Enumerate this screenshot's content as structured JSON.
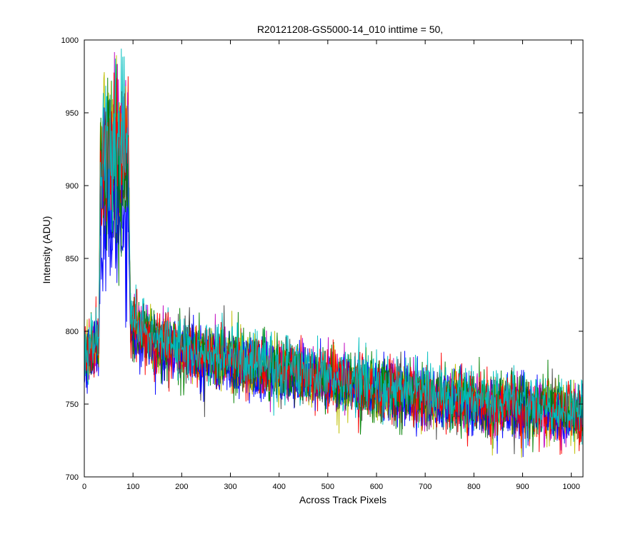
{
  "chart_data": {
    "type": "line",
    "title": "R20121208-GS5000-14_010 inttime = 50,",
    "xlabel": "Across Track Pixels",
    "ylabel": "Intensity (ADU)",
    "xlim": [
      0,
      1024
    ],
    "ylim": [
      700,
      1000
    ],
    "xticks": [
      "0",
      "100",
      "200",
      "300",
      "400",
      "500",
      "600",
      "700",
      "800",
      "900",
      "1000"
    ],
    "yticks": [
      "700",
      "750",
      "800",
      "850",
      "900",
      "950",
      "1000"
    ],
    "grid": false,
    "legend": "none",
    "noise_amplitude": 14,
    "series": [
      {
        "color": "#0000ff",
        "profile": [
          [
            0,
            775
          ],
          [
            30,
            790
          ],
          [
            33,
            870
          ],
          [
            90,
            875
          ],
          [
            95,
            800
          ],
          [
            150,
            790
          ],
          [
            300,
            778
          ],
          [
            500,
            765
          ],
          [
            700,
            755
          ],
          [
            1024,
            742
          ]
        ]
      },
      {
        "color": "#008000",
        "profile": [
          [
            0,
            782
          ],
          [
            30,
            795
          ],
          [
            33,
            905
          ],
          [
            90,
            908
          ],
          [
            95,
            805
          ],
          [
            150,
            792
          ],
          [
            300,
            780
          ],
          [
            500,
            767
          ],
          [
            700,
            756
          ],
          [
            1024,
            743
          ]
        ]
      },
      {
        "color": "#ff0000",
        "profile": [
          [
            0,
            780
          ],
          [
            30,
            793
          ],
          [
            33,
            925
          ],
          [
            90,
            928
          ],
          [
            95,
            803
          ],
          [
            150,
            791
          ],
          [
            300,
            779
          ],
          [
            500,
            766
          ],
          [
            700,
            755
          ],
          [
            1024,
            742
          ]
        ]
      },
      {
        "color": "#00bfbf",
        "profile": [
          [
            0,
            784
          ],
          [
            30,
            796
          ],
          [
            33,
            920
          ],
          [
            90,
            925
          ],
          [
            95,
            806
          ],
          [
            150,
            793
          ],
          [
            300,
            781
          ],
          [
            500,
            768
          ],
          [
            700,
            757
          ],
          [
            1024,
            744
          ]
        ]
      },
      {
        "color": "#bf00bf",
        "profile": [
          [
            0,
            779
          ],
          [
            30,
            792
          ],
          [
            33,
            930
          ],
          [
            90,
            932
          ],
          [
            95,
            802
          ],
          [
            150,
            790
          ],
          [
            300,
            778
          ],
          [
            500,
            765
          ],
          [
            700,
            754
          ],
          [
            1024,
            741
          ]
        ]
      },
      {
        "color": "#bfbf00",
        "profile": [
          [
            0,
            781
          ],
          [
            30,
            794
          ],
          [
            33,
            935
          ],
          [
            90,
            938
          ],
          [
            95,
            804
          ],
          [
            150,
            791
          ],
          [
            300,
            779
          ],
          [
            500,
            766
          ],
          [
            700,
            755
          ],
          [
            1024,
            742
          ]
        ]
      },
      {
        "color": "#404040",
        "profile": [
          [
            0,
            780
          ],
          [
            30,
            793
          ],
          [
            33,
            915
          ],
          [
            90,
            918
          ],
          [
            95,
            803
          ],
          [
            150,
            790
          ],
          [
            300,
            778
          ],
          [
            500,
            765
          ],
          [
            700,
            754
          ],
          [
            1024,
            742
          ]
        ]
      },
      {
        "color": "#0000ff",
        "profile": [
          [
            0,
            778
          ],
          [
            30,
            791
          ],
          [
            33,
            895
          ],
          [
            90,
            900
          ],
          [
            95,
            801
          ],
          [
            150,
            789
          ],
          [
            300,
            777
          ],
          [
            500,
            764
          ],
          [
            700,
            753
          ],
          [
            1024,
            741
          ]
        ]
      },
      {
        "color": "#008000",
        "profile": [
          [
            0,
            783
          ],
          [
            30,
            795
          ],
          [
            33,
            912
          ],
          [
            90,
            915
          ],
          [
            95,
            805
          ],
          [
            150,
            792
          ],
          [
            300,
            780
          ],
          [
            500,
            767
          ],
          [
            700,
            756
          ],
          [
            1024,
            743
          ]
        ]
      },
      {
        "color": "#ff0000",
        "profile": [
          [
            0,
            781
          ],
          [
            30,
            794
          ],
          [
            33,
            922
          ],
          [
            90,
            926
          ],
          [
            95,
            804
          ],
          [
            150,
            791
          ],
          [
            300,
            779
          ],
          [
            500,
            766
          ],
          [
            700,
            755
          ],
          [
            1024,
            742
          ]
        ]
      },
      {
        "color": "#00bfbf",
        "profile": [
          [
            0,
            785
          ],
          [
            30,
            797
          ],
          [
            33,
            918
          ],
          [
            90,
            924
          ],
          [
            95,
            807
          ],
          [
            150,
            794
          ],
          [
            300,
            782
          ],
          [
            500,
            769
          ],
          [
            700,
            758
          ],
          [
            1024,
            745
          ]
        ]
      }
    ]
  }
}
